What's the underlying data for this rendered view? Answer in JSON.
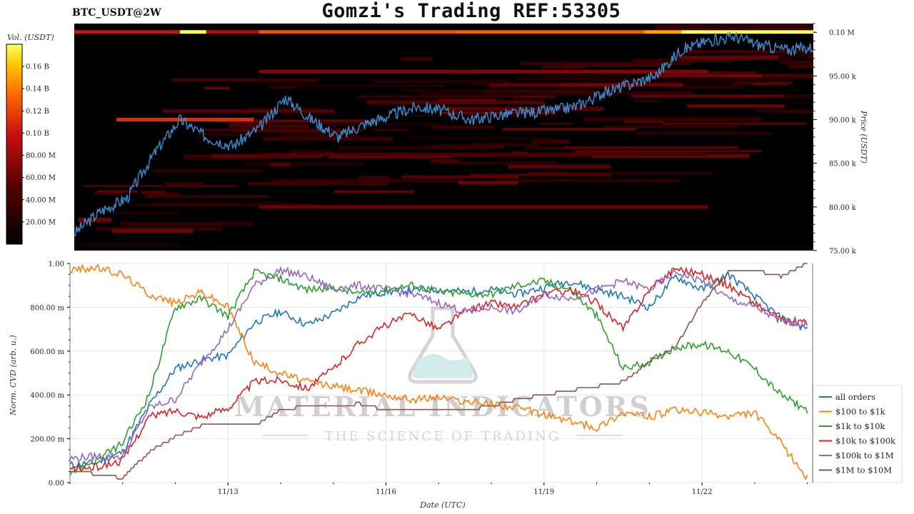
{
  "header": {
    "pair": "BTC_USDT@2W",
    "title": "Gomzi's Trading REF:53305"
  },
  "watermark": {
    "brand": "MATERIAL INDICATORS",
    "tagline": "THE SCIENCE OF TRADING"
  },
  "colors": {
    "all_orders": "#1f77b4",
    "100_to_1k": "#ff7f0e",
    "1k_to_10k": "#2ca02c",
    "10k_to_100k": "#d62728",
    "100k_to_1m": "#9467bd",
    "1m_to_10m": "#8c564b",
    "heatmap_bg": "#000000",
    "price_line": "#3a8fd4"
  },
  "chart_data": [
    {
      "type": "heatmap",
      "title": "",
      "colorbar": {
        "label": "Vol. (USDT)",
        "ticks": [
          "20.00 M",
          "40.00 M",
          "60.00 M",
          "80.00 M",
          "0.10 B",
          "0.12 B",
          "0.14 B",
          "0.16 B"
        ],
        "tick_values": [
          20,
          40,
          60,
          80,
          100,
          120,
          140,
          160
        ],
        "range": [
          0,
          180
        ]
      },
      "ylabel": "Price (USDT)",
      "y_ticks": [
        "75.00 k",
        "80.00 k",
        "85.00 k",
        "90.00 k",
        "95.00 k",
        "0.10 M"
      ],
      "y_tick_values": [
        75000,
        80000,
        85000,
        90000,
        95000,
        100000
      ],
      "ylim": [
        75000,
        101000
      ],
      "x_range_days": [
        "11/10",
        "11/24"
      ],
      "price_series": {
        "t": [
          0,
          0.5,
          1,
          1.5,
          2,
          2.5,
          3,
          3.5,
          4,
          4.5,
          5,
          5.5,
          6,
          6.5,
          7,
          7.5,
          8,
          8.5,
          9,
          9.5,
          10,
          10.5,
          11,
          11.5,
          12,
          12.5,
          13,
          13.5,
          14
        ],
        "price": [
          77000,
          79500,
          81000,
          86000,
          90000,
          88000,
          87000,
          89000,
          92500,
          90000,
          88000,
          89500,
          90500,
          91500,
          91000,
          90000,
          90500,
          90800,
          91000,
          91500,
          93000,
          94000,
          95000,
          98000,
          99000,
          99500,
          98500,
          98000,
          98300
        ]
      },
      "bright_level": 100000,
      "strong_levels": [
        {
          "price": 90000,
          "intensity": 110
        },
        {
          "price": 95500,
          "intensity": 70
        },
        {
          "price": 80000,
          "intensity": 60
        },
        {
          "price": 86000,
          "intensity": 45
        }
      ]
    },
    {
      "type": "line",
      "xlabel": "Date (UTC)",
      "ylabel": "Norm. CVD (arb. u.)",
      "x_ticks": [
        "11/13",
        "11/16",
        "11/19",
        "11/22"
      ],
      "x_tick_days": [
        3,
        6,
        9,
        12
      ],
      "xlim_days": [
        0,
        14.1
      ],
      "y_ticks": [
        "0.00",
        "200.00 m",
        "400.00 m",
        "600.00 m",
        "800.00 m",
        "1.00"
      ],
      "y_tick_values": [
        0,
        0.2,
        0.4,
        0.6,
        0.8,
        1.0
      ],
      "ylim": [
        0,
        1.0
      ],
      "grid": true,
      "legend_position": "bottom-right",
      "x": [
        0,
        0.5,
        1,
        1.5,
        2,
        2.5,
        3,
        3.5,
        4,
        4.5,
        5,
        5.5,
        6,
        6.5,
        7,
        7.5,
        8,
        8.5,
        9,
        9.5,
        10,
        10.5,
        11,
        11.5,
        12,
        12.5,
        13,
        13.5,
        14
      ],
      "series": [
        {
          "name": "all orders",
          "color_key": "all_orders",
          "values": [
            0.08,
            0.09,
            0.14,
            0.35,
            0.52,
            0.56,
            0.58,
            0.73,
            0.78,
            0.72,
            0.77,
            0.85,
            0.87,
            0.88,
            0.88,
            0.87,
            0.88,
            0.86,
            0.89,
            0.92,
            0.88,
            0.85,
            0.8,
            0.94,
            0.88,
            0.95,
            0.85,
            0.75,
            0.7
          ]
        },
        {
          "name": "$100 to $1k",
          "color_key": "100_to_1k",
          "values": [
            0.97,
            0.98,
            0.95,
            0.86,
            0.82,
            0.87,
            0.8,
            0.55,
            0.5,
            0.46,
            0.44,
            0.42,
            0.4,
            0.38,
            0.39,
            0.37,
            0.36,
            0.34,
            0.31,
            0.28,
            0.25,
            0.32,
            0.3,
            0.33,
            0.32,
            0.3,
            0.32,
            0.18,
            0.02
          ]
        },
        {
          "name": "$1k to $10k",
          "color_key": "1k_to_10k",
          "values": [
            0.05,
            0.1,
            0.18,
            0.4,
            0.8,
            0.84,
            0.76,
            0.96,
            0.93,
            0.88,
            0.89,
            0.86,
            0.88,
            0.9,
            0.87,
            0.86,
            0.86,
            0.9,
            0.92,
            0.88,
            0.76,
            0.52,
            0.55,
            0.62,
            0.63,
            0.6,
            0.52,
            0.4,
            0.33
          ]
        },
        {
          "name": "$10k to $100k",
          "color_key": "10k_to_100k",
          "values": [
            0.06,
            0.07,
            0.1,
            0.3,
            0.33,
            0.3,
            0.34,
            0.46,
            0.47,
            0.43,
            0.52,
            0.64,
            0.72,
            0.77,
            0.7,
            0.78,
            0.82,
            0.8,
            0.86,
            0.88,
            0.82,
            0.7,
            0.88,
            0.98,
            0.95,
            0.9,
            0.82,
            0.74,
            0.73
          ]
        },
        {
          "name": "$100k to $1M",
          "color_key": "100k_to_1m",
          "values": [
            0.11,
            0.12,
            0.12,
            0.34,
            0.38,
            0.55,
            0.7,
            0.9,
            0.97,
            0.94,
            0.88,
            0.9,
            0.88,
            0.86,
            0.82,
            0.78,
            0.8,
            0.78,
            0.86,
            0.84,
            0.88,
            0.92,
            0.88,
            0.96,
            0.92,
            0.84,
            0.8,
            0.74,
            0.72
          ]
        },
        {
          "name": "$1M to $10M",
          "color_key": "1m_to_10m",
          "values": [
            0.05,
            0.04,
            0.02,
            0.14,
            0.21,
            0.26,
            0.26,
            0.26,
            0.33,
            0.35,
            0.35,
            0.36,
            0.33,
            0.33,
            0.33,
            0.33,
            0.35,
            0.38,
            0.4,
            0.42,
            0.44,
            0.46,
            0.55,
            0.62,
            0.82,
            0.96,
            0.97,
            0.94,
            1.0
          ]
        }
      ]
    }
  ]
}
